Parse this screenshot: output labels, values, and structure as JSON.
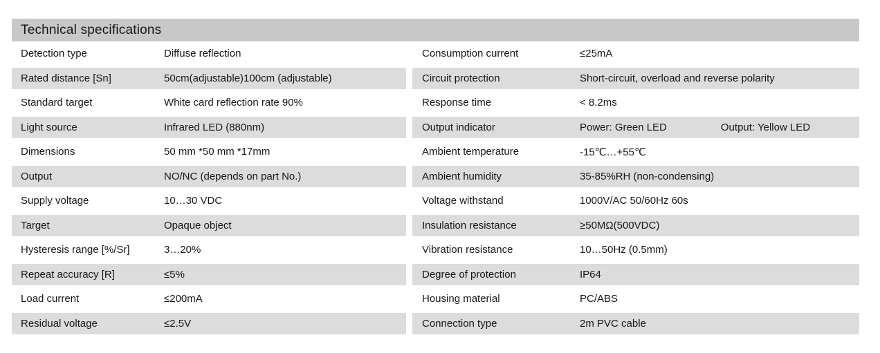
{
  "header": {
    "title": "Technical specifications"
  },
  "colors": {
    "header_bar": "#c8c8c8",
    "row_stripe": "#dcdcdd",
    "text": "#161616",
    "background": "#ffffff"
  },
  "table": {
    "rows": [
      {
        "left": {
          "label": "Detection type",
          "value": "Diffuse reflection"
        },
        "right": {
          "label": "Consumption current",
          "value": "≤25mA"
        }
      },
      {
        "left": {
          "label": "Rated distance [Sn]",
          "value": "50cm(adjustable)100cm (adjustable)"
        },
        "right": {
          "label": "Circuit protection",
          "value": "Short-circuit, overload and reverse polarity"
        }
      },
      {
        "left": {
          "label": "Standard target",
          "value": "White card reflection rate 90%"
        },
        "right": {
          "label": "Response time",
          "value": "< 8.2ms"
        }
      },
      {
        "left": {
          "label": "Light source",
          "value": "Infrared LED (880nm)"
        },
        "right": {
          "label": "Output indicator",
          "value": "Power: Green LED",
          "value2": "Output: Yellow LED"
        }
      },
      {
        "left": {
          "label": "Dimensions",
          "value": "50 mm *50 mm *17mm"
        },
        "right": {
          "label": "Ambient temperature",
          "value": "-15℃…+55℃"
        }
      },
      {
        "left": {
          "label": "Output",
          "value": "NO/NC (depends on part No.)"
        },
        "right": {
          "label": "Ambient humidity",
          "value": "35-85%RH (non-condensing)"
        }
      },
      {
        "left": {
          "label": "Supply voltage",
          "value": "10…30 VDC"
        },
        "right": {
          "label": "Voltage withstand",
          "value": "1000V/AC 50/60Hz 60s"
        }
      },
      {
        "left": {
          "label": "Target",
          "value": "Opaque object"
        },
        "right": {
          "label": "Insulation resistance",
          "value": "≥50MΩ(500VDC)"
        }
      },
      {
        "left": {
          "label": "Hysteresis range [%/Sr]",
          "value": "3…20%"
        },
        "right": {
          "label": "Vibration resistance",
          "value": "10…50Hz (0.5mm)"
        }
      },
      {
        "left": {
          "label": "Repeat accuracy [R]",
          "value": "≤5%"
        },
        "right": {
          "label": "Degree of protection",
          "value": "IP64"
        }
      },
      {
        "left": {
          "label": "Load current",
          "value": "≤200mA"
        },
        "right": {
          "label": "Housing material",
          "value": "PC/ABS"
        }
      },
      {
        "left": {
          "label": "Residual voltage",
          "value": "≤2.5V"
        },
        "right": {
          "label": "Connection type",
          "value": "2m PVC cable"
        }
      }
    ]
  }
}
